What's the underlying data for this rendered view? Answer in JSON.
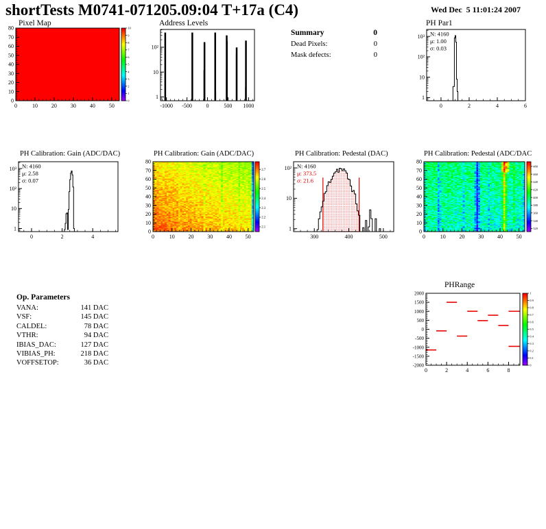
{
  "header": {
    "title": "shortTests M0741-071205.09:04 T+17a (C4)",
    "date": "Wed Dec  5 11:01:24 2007"
  },
  "summary": {
    "heading": "Summary",
    "heading_value": "0",
    "rows": [
      {
        "label": "Dead Pixels:",
        "value": "0"
      },
      {
        "label": "Mask defects:",
        "value": "0"
      }
    ]
  },
  "op_parameters": {
    "heading": "Op. Parameters",
    "rows": [
      {
        "label": "VANA:",
        "value": "141 DAC"
      },
      {
        "label": "VSF:",
        "value": "145 DAC"
      },
      {
        "label": "CALDEL:",
        "value": "78 DAC"
      },
      {
        "label": "VTHR:",
        "value": "94 DAC"
      },
      {
        "label": "IBIAS_DAC:",
        "value": "127 DAC"
      },
      {
        "label": "VIBIAS_PH:",
        "value": "218 DAC"
      },
      {
        "label": "VOFFSETOP:",
        "value": "36 DAC"
      }
    ]
  },
  "colors": {
    "accent_red": "#e60000",
    "map_red": "#ff0000",
    "black": "#000000"
  },
  "chart_data": [
    {
      "id": "pixel-map",
      "type": "heatmap-uniform",
      "title": "Pixel Map",
      "xlim": [
        0,
        54
      ],
      "ylim": [
        0,
        80
      ],
      "x_ticks": [
        0,
        10,
        20,
        30,
        40,
        50
      ],
      "x_minor": 2,
      "y_ticks": [
        0,
        10,
        20,
        30,
        40,
        50,
        60,
        70,
        80
      ],
      "y_minor": 2,
      "value": 10,
      "zlim": [
        0,
        10
      ],
      "colorbar_ticks": [
        0,
        1,
        2,
        3,
        4,
        5,
        6,
        7,
        8,
        9,
        10
      ]
    },
    {
      "id": "address-levels",
      "type": "spikes",
      "title": "Address Levels",
      "xlim": [
        -1145,
        1145
      ],
      "x_ticks": [
        -1000,
        -500,
        0,
        500,
        1000
      ],
      "x_minor": 100,
      "ylog": true,
      "ylim": [
        0.7,
        520
      ],
      "y_ticks": [
        [
          1,
          "1"
        ],
        [
          10,
          "10"
        ],
        [
          100,
          "10²"
        ]
      ],
      "spikes": [
        [
          -1030,
          390,
          2.5
        ],
        [
          -370,
          390,
          2.5
        ],
        [
          -88,
          12,
          1
        ],
        [
          -73,
          160,
          2.5
        ],
        [
          188,
          390,
          2.5
        ],
        [
          202,
          1.6,
          1
        ],
        [
          458,
          12,
          1
        ],
        [
          468,
          300,
          2.5
        ],
        [
          479,
          180,
          1.5
        ],
        [
          700,
          55,
          1
        ],
        [
          711,
          98,
          2.5
        ],
        [
          925,
          2.5,
          1
        ],
        [
          937,
          185,
          2.5
        ]
      ]
    },
    {
      "id": "ph-par1",
      "type": "hist",
      "title": "PH Par1",
      "stats": [
        {
          "text": "N: 4160",
          "color": "#000000"
        },
        {
          "text": "μ: 1.00",
          "color": "#000000"
        },
        {
          "text": "σ: 0.03",
          "color": "#000000"
        }
      ],
      "xlim": [
        -1.02,
        6
      ],
      "x_ticks": [
        0,
        2,
        4,
        6
      ],
      "x_minor": 0.5,
      "ylog": true,
      "ylim": [
        0.7,
        2200
      ],
      "y_ticks": [
        [
          1,
          "1"
        ],
        [
          10,
          "10"
        ],
        [
          100,
          "10²"
        ],
        [
          1000,
          "10³"
        ]
      ],
      "binw": 0.05,
      "bins": [
        [
          0.85,
          3.5
        ],
        [
          0.9,
          3.5
        ],
        [
          0.95,
          850
        ],
        [
          1.0,
          1100
        ],
        [
          1.05,
          520
        ],
        [
          1.1,
          8
        ],
        [
          1.15,
          2
        ]
      ]
    },
    {
      "id": "gain-hist",
      "type": "hist",
      "title": "PH Calibration: Gain (ADC/DAC)",
      "stats": [
        {
          "text": "N: 4160",
          "color": "#000000"
        },
        {
          "text": "μ: 2.58",
          "color": "#000000"
        },
        {
          "text": "σ: 0.07",
          "color": "#000000"
        }
      ],
      "xlim": [
        -0.85,
        5.65
      ],
      "x_ticks": [
        0,
        2,
        4
      ],
      "x_minor": 0.5,
      "ylog": true,
      "ylim": [
        0.7,
        2200
      ],
      "y_ticks": [
        [
          1,
          "1"
        ],
        [
          10,
          "10"
        ],
        [
          100,
          "10²"
        ],
        [
          1000,
          "10³"
        ]
      ],
      "binw": 0.05,
      "bins": [
        [
          2.15,
          0.9
        ],
        [
          2.2,
          1.8
        ],
        [
          2.25,
          5.5
        ],
        [
          2.3,
          6
        ],
        [
          2.35,
          0.9
        ],
        [
          2.4,
          9
        ],
        [
          2.45,
          70
        ],
        [
          2.5,
          280
        ],
        [
          2.55,
          600
        ],
        [
          2.6,
          760
        ],
        [
          2.65,
          480
        ],
        [
          2.7,
          120
        ],
        [
          2.75,
          1
        ]
      ]
    },
    {
      "id": "gain-map",
      "type": "heatmap-noise",
      "title": "PH Calibration: Gain (ADC/DAC)",
      "xlim": [
        0,
        53
      ],
      "ylim": [
        0,
        80
      ],
      "x_ticks": [
        0,
        10,
        20,
        30,
        40,
        50
      ],
      "x_minor": 2,
      "y_ticks": [
        0,
        10,
        20,
        30,
        40,
        50,
        60,
        70,
        80
      ],
      "y_minor": 2,
      "nx": 52,
      "ny": 80,
      "seed": 7,
      "zlim": [
        2.05,
        2.78
      ],
      "base": 2.72,
      "grad_x": -0.085,
      "grad_y": -0.09,
      "noise": 0.09,
      "col_offsets": {
        "13": -0.02,
        "26": -0.035,
        "35": -0.04,
        "44": -0.03,
        "51": -0.33
      },
      "colorbar_ticks": [
        2.1,
        2.2,
        2.3,
        2.4,
        2.5,
        2.6,
        2.7
      ]
    },
    {
      "id": "pedestal-hist",
      "type": "hist-marked",
      "title": "PH Calibration: Pedestal (DAC)",
      "stats": [
        {
          "text": "N: 4160",
          "color": "#000000"
        },
        {
          "text": "μ: 373.5",
          "color": "#e60000"
        },
        {
          "text": "σ: 21.6",
          "color": "#e60000"
        }
      ],
      "xlim": [
        240,
        530
      ],
      "x_ticks": [
        300,
        400,
        500
      ],
      "x_minor": 20,
      "ylog": true,
      "ylim": [
        0.8,
        160
      ],
      "y_ticks": [
        [
          1,
          "1"
        ],
        [
          10,
          "10"
        ],
        [
          100,
          "10²"
        ]
      ],
      "mu": 373.5,
      "sigma": 21.6,
      "peak": 92,
      "binw": 4,
      "range": [
        292,
        500
      ],
      "tail": [
        436,
        480
      ],
      "markers": [
        325,
        430
      ],
      "marker_height": 48,
      "seed": 11
    },
    {
      "id": "pedestal-map",
      "type": "heatmap-noise",
      "title": "PH Calibration: Pedestal (ADC/DAC",
      "xlim": [
        0,
        53
      ],
      "ylim": [
        0,
        80
      ],
      "x_ticks": [
        0,
        10,
        20,
        30,
        40,
        50
      ],
      "x_minor": 2,
      "y_ticks": [
        0,
        10,
        20,
        30,
        40,
        50,
        60,
        70,
        80
      ],
      "y_minor": 2,
      "nx": 52,
      "ny": 80,
      "seed": 23,
      "zlim": [
        312,
        492
      ],
      "base": 386,
      "grad_x": -8,
      "grad_y": 14,
      "noise": 40,
      "col_offsets": {
        "0": -12,
        "7": -28,
        "8": -14,
        "20": -14,
        "26": -22,
        "27": -52,
        "28": -24,
        "33": -16,
        "40": 18,
        "41": 58,
        "42": 26,
        "46": 16,
        "51": -14
      },
      "hotspot": {
        "x0": 40,
        "x1": 43,
        "y_frac": 0.84,
        "dv": 42
      },
      "colorbar_ticks": [
        320,
        340,
        360,
        380,
        400,
        420,
        440,
        460,
        480
      ]
    },
    {
      "id": "ph-range",
      "type": "segments",
      "title": "PHRange",
      "xlim": [
        0,
        9.1
      ],
      "x_ticks": [
        0,
        2,
        4,
        6,
        8
      ],
      "x_minor": 0.5,
      "ylim": [
        -2000,
        2000
      ],
      "y_ticks": [
        -2000,
        -1500,
        -1000,
        -500,
        0,
        500,
        1000,
        1500,
        2000
      ],
      "y_minor": 100,
      "segments": [
        [
          0,
          1,
          -1150
        ],
        [
          1,
          2,
          -90
        ],
        [
          2,
          3,
          1500
        ],
        [
          3,
          4,
          -380
        ],
        [
          4,
          5,
          1000
        ],
        [
          5,
          6,
          480
        ],
        [
          6,
          7,
          780
        ],
        [
          7,
          8,
          210
        ],
        [
          8,
          9.1,
          1000
        ],
        [
          8,
          9.1,
          -950
        ]
      ],
      "color": "#e60000",
      "zlim": [
        0,
        1
      ],
      "colorbar_ticks": [
        0,
        0.1,
        0.2,
        0.3,
        0.4,
        0.5,
        0.6,
        0.7,
        0.8,
        0.9,
        1
      ]
    }
  ]
}
